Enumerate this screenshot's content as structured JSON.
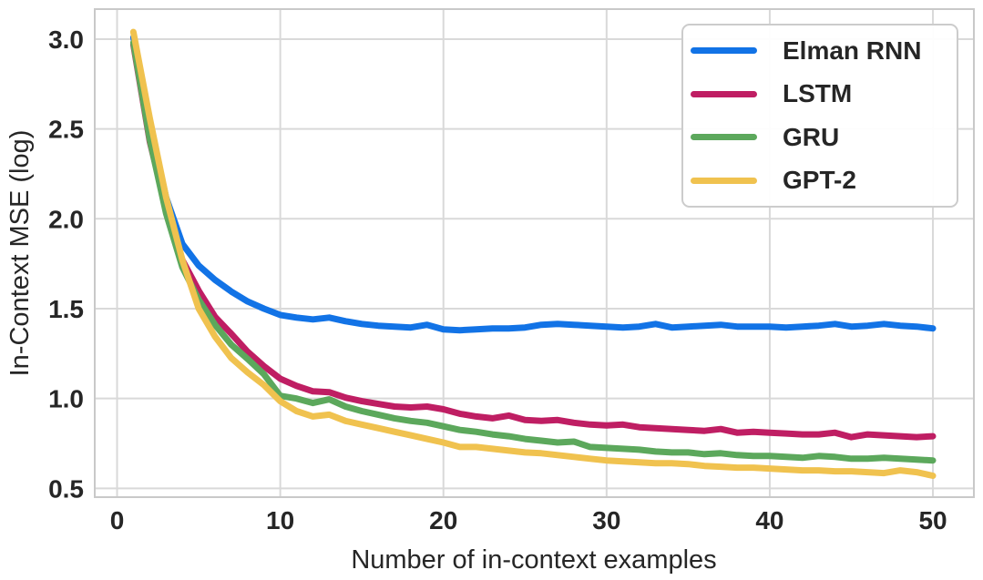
{
  "figure": {
    "background_color": "#ffffff",
    "text_color": "#262626",
    "grid_color": "#d9d9d9",
    "spine_color": "#c9c9c9"
  },
  "chart_data": {
    "type": "line",
    "title": "",
    "xlabel": "Number of in-context examples",
    "ylabel": "In-Context MSE (log)",
    "grid": true,
    "legend_position": "upper right",
    "xlim": [
      -1.37,
      52.51
    ],
    "ylim": [
      0.451,
      3.167
    ],
    "xticks": {
      "values": [
        0,
        10,
        20,
        30,
        40,
        50
      ],
      "labels": [
        "0",
        "10",
        "20",
        "30",
        "40",
        "50"
      ]
    },
    "yticks": {
      "values": [
        0.5,
        1.0,
        1.5,
        2.0,
        2.5,
        3.0
      ],
      "labels": [
        "0.5",
        "1.0",
        "1.5",
        "2.0",
        "2.5",
        "3.0"
      ]
    },
    "x": [
      1,
      2,
      3,
      4,
      5,
      6,
      7,
      8,
      9,
      10,
      11,
      12,
      13,
      14,
      15,
      16,
      17,
      18,
      19,
      20,
      21,
      22,
      23,
      24,
      25,
      26,
      27,
      28,
      29,
      30,
      31,
      32,
      33,
      34,
      35,
      36,
      37,
      38,
      39,
      40,
      41,
      42,
      43,
      44,
      45,
      46,
      47,
      48,
      49,
      50
    ],
    "series": [
      {
        "name": "Elman RNN",
        "color": "#1273e6",
        "values": [
          3.01,
          2.52,
          2.12,
          1.86,
          1.74,
          1.66,
          1.595,
          1.54,
          1.5,
          1.465,
          1.45,
          1.44,
          1.45,
          1.43,
          1.415,
          1.405,
          1.4,
          1.395,
          1.41,
          1.385,
          1.38,
          1.385,
          1.39,
          1.39,
          1.395,
          1.41,
          1.415,
          1.41,
          1.405,
          1.4,
          1.395,
          1.4,
          1.415,
          1.395,
          1.4,
          1.405,
          1.41,
          1.4,
          1.4,
          1.4,
          1.395,
          1.4,
          1.405,
          1.415,
          1.4,
          1.405,
          1.415,
          1.405,
          1.4,
          1.39
        ]
      },
      {
        "name": "LSTM",
        "color": "#bf1e63",
        "values": [
          2.97,
          2.43,
          2.06,
          1.77,
          1.6,
          1.455,
          1.36,
          1.26,
          1.18,
          1.11,
          1.07,
          1.04,
          1.035,
          1.005,
          0.985,
          0.97,
          0.955,
          0.95,
          0.955,
          0.94,
          0.915,
          0.9,
          0.89,
          0.905,
          0.88,
          0.875,
          0.88,
          0.865,
          0.855,
          0.85,
          0.855,
          0.84,
          0.835,
          0.83,
          0.825,
          0.82,
          0.83,
          0.81,
          0.815,
          0.81,
          0.805,
          0.8,
          0.8,
          0.81,
          0.785,
          0.8,
          0.795,
          0.79,
          0.785,
          0.79
        ]
      },
      {
        "name": "GRU",
        "color": "#5ca85c",
        "values": [
          2.98,
          2.44,
          2.03,
          1.73,
          1.55,
          1.41,
          1.3,
          1.22,
          1.135,
          1.015,
          1.0,
          0.975,
          0.995,
          0.955,
          0.93,
          0.91,
          0.89,
          0.875,
          0.865,
          0.845,
          0.825,
          0.815,
          0.8,
          0.79,
          0.775,
          0.765,
          0.755,
          0.76,
          0.73,
          0.725,
          0.72,
          0.715,
          0.705,
          0.7,
          0.7,
          0.69,
          0.695,
          0.685,
          0.68,
          0.68,
          0.675,
          0.67,
          0.68,
          0.675,
          0.665,
          0.665,
          0.67,
          0.665,
          0.66,
          0.655
        ]
      },
      {
        "name": "GPT-2",
        "color": "#f0c24f",
        "values": [
          3.04,
          2.56,
          2.12,
          1.77,
          1.5,
          1.345,
          1.225,
          1.145,
          1.075,
          0.985,
          0.93,
          0.9,
          0.91,
          0.875,
          0.855,
          0.835,
          0.815,
          0.795,
          0.775,
          0.755,
          0.73,
          0.73,
          0.72,
          0.71,
          0.7,
          0.695,
          0.685,
          0.675,
          0.665,
          0.655,
          0.65,
          0.645,
          0.64,
          0.64,
          0.635,
          0.625,
          0.62,
          0.615,
          0.615,
          0.61,
          0.605,
          0.6,
          0.6,
          0.595,
          0.595,
          0.59,
          0.585,
          0.6,
          0.59,
          0.57
        ]
      }
    ]
  }
}
